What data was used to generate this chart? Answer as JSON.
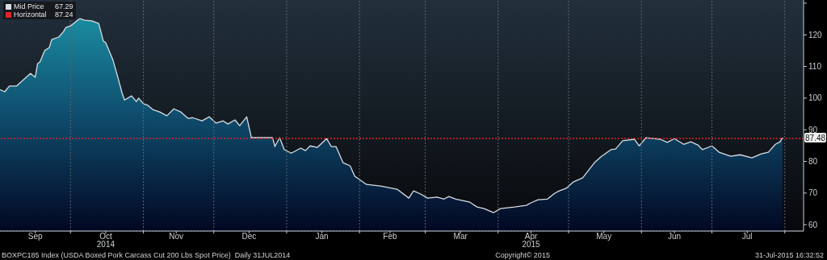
{
  "chart_data": {
    "type": "area",
    "x": [
      "2014-09-01",
      "2014-09-03",
      "2014-09-05",
      "2014-09-08",
      "2014-09-11",
      "2014-09-14",
      "2014-09-16",
      "2014-09-17",
      "2014-09-18",
      "2014-09-20",
      "2014-09-22",
      "2014-09-23",
      "2014-09-26",
      "2014-09-28",
      "2014-09-29",
      "2014-10-01",
      "2014-10-04",
      "2014-10-05",
      "2014-10-07",
      "2014-10-10",
      "2014-10-13",
      "2014-10-15",
      "2014-10-16",
      "2014-10-19",
      "2014-10-21",
      "2014-10-23",
      "2014-10-24",
      "2014-10-27",
      "2014-10-29",
      "2014-10-30",
      "2014-11-01",
      "2014-11-03",
      "2014-11-05",
      "2014-11-08",
      "2014-11-11",
      "2014-11-14",
      "2014-11-17",
      "2014-11-20",
      "2014-11-22",
      "2014-11-26",
      "2014-11-29",
      "2014-12-02",
      "2014-12-05",
      "2014-12-07",
      "2014-12-10",
      "2014-12-12",
      "2014-12-15",
      "2014-12-17",
      "2014-12-20",
      "2014-12-26",
      "2014-12-27",
      "2014-12-29",
      "2014-12-31",
      "2015-01-03",
      "2015-01-07",
      "2015-01-09",
      "2015-01-11",
      "2015-01-14",
      "2015-01-18",
      "2015-01-20",
      "2015-01-22",
      "2015-01-25",
      "2015-01-28",
      "2015-01-30",
      "2015-02-04",
      "2015-02-10",
      "2015-02-17",
      "2015-02-22",
      "2015-02-24",
      "2015-02-27",
      "2015-03-02",
      "2015-03-06",
      "2015-03-09",
      "2015-03-11",
      "2015-03-14",
      "2015-03-20",
      "2015-03-23",
      "2015-03-26",
      "2015-03-30",
      "2015-04-02",
      "2015-04-08",
      "2015-04-13",
      "2015-04-15",
      "2015-04-18",
      "2015-04-22",
      "2015-04-25",
      "2015-04-27",
      "2015-04-30",
      "2015-05-03",
      "2015-05-07",
      "2015-05-12",
      "2015-05-15",
      "2015-05-19",
      "2015-05-21",
      "2015-05-24",
      "2015-05-29",
      "2015-05-31",
      "2015-06-03",
      "2015-06-09",
      "2015-06-12",
      "2015-06-15",
      "2015-06-19",
      "2015-06-22",
      "2015-06-25",
      "2015-06-27",
      "2015-07-01",
      "2015-07-04",
      "2015-07-09",
      "2015-07-13",
      "2015-07-18",
      "2015-07-22",
      "2015-07-25",
      "2015-07-28",
      "2015-07-30",
      "2015-07-31"
    ],
    "series": [
      {
        "name": "Mid Price",
        "color": "#d8dde3",
        "values": [
          102.7,
          102,
          103.8,
          103.8,
          105.8,
          107.8,
          106.6,
          110.9,
          111.4,
          115,
          116,
          118.5,
          119.3,
          121,
          122.3,
          122.8,
          124.6,
          125.1,
          124.6,
          124.4,
          123.6,
          118,
          117.5,
          112.2,
          107,
          101.5,
          99.4,
          100.7,
          98.9,
          100,
          98.2,
          97.7,
          96.4,
          95.6,
          94.4,
          96.6,
          95.6,
          93.6,
          93.8,
          92.8,
          94.1,
          92.1,
          92.8,
          91.8,
          93.1,
          91.3,
          94.1,
          87.5,
          87.5,
          87.5,
          84.7,
          87.5,
          83.7,
          82.6,
          84.2,
          83.4,
          84.9,
          84.4,
          87.2,
          84.7,
          84.7,
          79.6,
          78.6,
          75.3,
          72.7,
          72.2,
          71.2,
          68.4,
          70.7,
          69.7,
          68.4,
          68.7,
          68.1,
          68.9,
          68.1,
          67.1,
          65.6,
          65.1,
          63.8,
          65.1,
          65.6,
          66.1,
          66.9,
          67.9,
          68.1,
          69.9,
          70.7,
          71.5,
          73.5,
          74.8,
          79.6,
          81.6,
          83.7,
          83.9,
          86.5,
          87,
          84.9,
          87.5,
          87,
          86,
          87.2,
          85.4,
          86.2,
          85.2,
          83.7,
          84.9,
          82.9,
          81.6,
          82.1,
          81.1,
          82.4,
          82.9,
          85.4,
          86.2,
          87.48
        ]
      }
    ],
    "ylim": [
      58,
      131
    ],
    "yticks": [
      60,
      70,
      80,
      90,
      100,
      110,
      120,
      {
        "value": 130,
        "label": null
      }
    ],
    "xlim": [
      "2014-09-01",
      "2015-08-09"
    ],
    "xticks": [
      {
        "value": "2014-09-16",
        "label": "Sep"
      },
      {
        "value": "2014-10-01",
        "label": null
      },
      {
        "value": "2014-10-16",
        "label": "Oct\n2014"
      },
      {
        "value": "2014-11-01",
        "label": null
      },
      {
        "value": "2014-11-15",
        "label": "Nov"
      },
      {
        "value": "2014-12-01",
        "label": null
      },
      {
        "value": "2014-12-16",
        "label": "Dec"
      },
      {
        "value": "2015-01-01",
        "label": null
      },
      {
        "value": "2015-01-16",
        "label": "Jan"
      },
      {
        "value": "2015-02-01",
        "label": null
      },
      {
        "value": "2015-02-14",
        "label": "Feb"
      },
      {
        "value": "2015-03-01",
        "label": null
      },
      {
        "value": "2015-03-16",
        "label": "Mar"
      },
      {
        "value": "2015-04-01",
        "label": null
      },
      {
        "value": "2015-04-15",
        "label": "Apr\n2015"
      },
      {
        "value": "2015-05-01",
        "label": null
      },
      {
        "value": "2015-05-16",
        "label": "May"
      },
      {
        "value": "2015-06-01",
        "label": null
      },
      {
        "value": "2015-06-15",
        "label": "Jun"
      },
      {
        "value": "2015-07-01",
        "label": null
      },
      {
        "value": "2015-07-16",
        "label": "Jul"
      },
      {
        "value": "2015-08-01",
        "label": null
      }
    ],
    "ref_lines": [
      {
        "axis": "y",
        "value": 87.24,
        "label": "Horizontal",
        "color": "#e0252a",
        "line_style": "dotted"
      }
    ],
    "grid": true,
    "legend": "top left",
    "annotations": [
      "67.29",
      "87.24",
      "BOXPC185 Index (USDA Boxed Pork Carcass Cut 200 Lbs Spot Price)  Daily 31JUL2014",
      "Copyright© 2015",
      "31-Jul-2015 16:32:52",
      {
        "text": "87.48",
        "x": "2015-07-31",
        "y": 87.48
      }
    ]
  }
}
